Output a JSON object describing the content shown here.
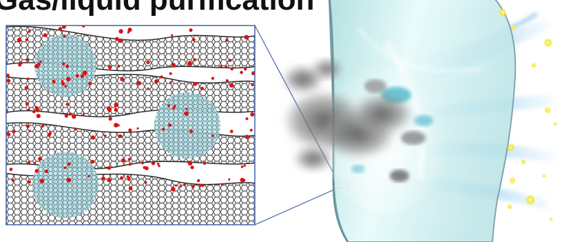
{
  "title": "Gas/liquid purification",
  "colors": {
    "graphene": "#3a3a3a",
    "oxygen_groups": "#d81414",
    "nanoparticle": "#8fc4cc",
    "glass": "#cfeff0",
    "glass_edge": "#7fa5ad",
    "smoke": "#6a6a6a",
    "clean_flow": "#8ec9ee",
    "sparkle": "#f3e83a",
    "callout_line": "#3f63a8"
  },
  "icons": {
    "inset": "graphene-oxide-nanocomposite-inset",
    "membrane": "curved-membrane-sheet",
    "feed": "smoke-cloud-icon",
    "permeate": "clean-air-streaks-icon"
  }
}
